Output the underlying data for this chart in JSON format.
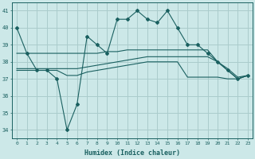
{
  "xlabel": "Humidex (Indice chaleur)",
  "ylabel": "",
  "bg_color": "#cce8e8",
  "grid_color": "#aacccc",
  "line_color": "#1a6060",
  "x": [
    0,
    1,
    2,
    3,
    4,
    5,
    6,
    7,
    8,
    9,
    10,
    11,
    12,
    13,
    14,
    15,
    16,
    17,
    18,
    19,
    20,
    21,
    22,
    23
  ],
  "line1": [
    40.0,
    38.5,
    37.5,
    37.5,
    37.0,
    34.0,
    35.5,
    39.5,
    39.0,
    38.5,
    40.5,
    40.5,
    41.0,
    40.5,
    40.3,
    41.0,
    40.0,
    39.0,
    39.0,
    38.5,
    38.0,
    37.5,
    37.0,
    37.2
  ],
  "line2": [
    37.5,
    37.5,
    37.5,
    37.5,
    37.5,
    37.2,
    37.2,
    37.4,
    37.5,
    37.6,
    37.7,
    37.8,
    37.9,
    38.0,
    38.0,
    38.0,
    38.0,
    37.1,
    37.1,
    37.1,
    37.1,
    37.0,
    37.0,
    37.2
  ],
  "line3": [
    37.6,
    37.6,
    37.6,
    37.6,
    37.6,
    37.6,
    37.6,
    37.7,
    37.8,
    37.9,
    38.0,
    38.1,
    38.2,
    38.3,
    38.3,
    38.3,
    38.3,
    38.3,
    38.3,
    38.3,
    38.0,
    37.5,
    37.0,
    37.2
  ],
  "line4": [
    38.5,
    38.5,
    38.5,
    38.5,
    38.5,
    38.5,
    38.5,
    38.5,
    38.5,
    38.6,
    38.6,
    38.7,
    38.7,
    38.7,
    38.7,
    38.7,
    38.7,
    38.7,
    38.7,
    38.7,
    38.0,
    37.6,
    37.1,
    37.2
  ],
  "ylim": [
    33.5,
    41.5
  ],
  "yticks": [
    34,
    35,
    36,
    37,
    38,
    39,
    40,
    41
  ]
}
